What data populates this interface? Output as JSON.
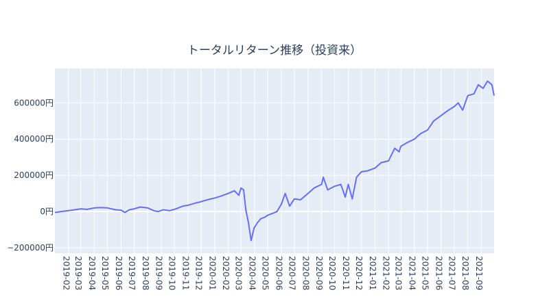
{
  "chart_data": {
    "type": "line",
    "title": "トータルリターン推移（投資来）",
    "xlabel": "",
    "ylabel": "",
    "x_ticks": [
      "2019-02",
      "2019-03",
      "2019-04",
      "2019-05",
      "2019-06",
      "2019-07",
      "2019-08",
      "2019-09",
      "2019-10",
      "2019-11",
      "2019-12",
      "2020-01",
      "2020-02",
      "2020-03",
      "2020-04",
      "2020-05",
      "2020-06",
      "2020-07",
      "2020-08",
      "2020-09",
      "2020-10",
      "2020-11",
      "2020-12",
      "2021-01",
      "2021-02",
      "2021-03",
      "2021-04",
      "2021-05",
      "2021-06",
      "2021-07",
      "2021-08",
      "2021-09"
    ],
    "y_ticks": [
      {
        "value": -200000,
        "label": "−200000円"
      },
      {
        "value": 0,
        "label": "0円"
      },
      {
        "value": 200000,
        "label": "200000円"
      },
      {
        "value": 400000,
        "label": "400000円"
      },
      {
        "value": 600000,
        "label": "600000円"
      }
    ],
    "xlim": [
      "2019-01-01",
      "2021-09-30"
    ],
    "ylim": [
      -230000,
      790000
    ],
    "grid": true,
    "colors": {
      "line": "#636efa",
      "plot_bg": "#e5ecf6",
      "grid": "#ffffff",
      "text": "#2a3f5f"
    },
    "series": [
      {
        "x": [
          "2019-01-01",
          "2019-01-15",
          "2019-02-01",
          "2019-02-15",
          "2019-03-01",
          "2019-03-15",
          "2019-04-01",
          "2019-04-15",
          "2019-05-01",
          "2019-05-20",
          "2019-06-01",
          "2019-06-10",
          "2019-06-20",
          "2019-07-01",
          "2019-07-15",
          "2019-08-01",
          "2019-08-15",
          "2019-08-25",
          "2019-09-05",
          "2019-09-20",
          "2019-10-05",
          "2019-10-20",
          "2019-11-01",
          "2019-11-15",
          "2019-12-01",
          "2019-12-15",
          "2020-01-01",
          "2020-01-15",
          "2020-02-01",
          "2020-02-15",
          "2020-02-25",
          "2020-03-01",
          "2020-03-07",
          "2020-03-12",
          "2020-03-18",
          "2020-03-24",
          "2020-03-31",
          "2020-04-08",
          "2020-04-15",
          "2020-04-25",
          "2020-05-01",
          "2020-05-12",
          "2020-05-22",
          "2020-06-01",
          "2020-06-10",
          "2020-06-20",
          "2020-07-01",
          "2020-07-15",
          "2020-08-01",
          "2020-08-15",
          "2020-09-01",
          "2020-09-05",
          "2020-09-15",
          "2020-10-01",
          "2020-10-15",
          "2020-10-25",
          "2020-11-01",
          "2020-11-10",
          "2020-11-20",
          "2020-12-01",
          "2020-12-15",
          "2021-01-01",
          "2021-01-15",
          "2021-02-01",
          "2021-02-15",
          "2021-02-25",
          "2021-03-01",
          "2021-03-15",
          "2021-04-01",
          "2021-04-15",
          "2021-05-01",
          "2021-05-15",
          "2021-06-01",
          "2021-06-15",
          "2021-07-01",
          "2021-07-10",
          "2021-07-20",
          "2021-08-01",
          "2021-08-15",
          "2021-08-25",
          "2021-09-05",
          "2021-09-15",
          "2021-09-25",
          "2021-09-30"
        ],
        "y": [
          -5000,
          0,
          5000,
          10000,
          15000,
          12000,
          20000,
          22000,
          20000,
          10000,
          8000,
          -5000,
          10000,
          15000,
          25000,
          20000,
          5000,
          0,
          10000,
          5000,
          15000,
          30000,
          35000,
          45000,
          55000,
          65000,
          75000,
          85000,
          100000,
          115000,
          90000,
          130000,
          120000,
          10000,
          -60000,
          -160000,
          -90000,
          -60000,
          -40000,
          -30000,
          -20000,
          -10000,
          0,
          40000,
          100000,
          30000,
          70000,
          65000,
          100000,
          130000,
          150000,
          190000,
          120000,
          140000,
          150000,
          80000,
          150000,
          70000,
          190000,
          220000,
          225000,
          240000,
          270000,
          280000,
          350000,
          330000,
          360000,
          380000,
          400000,
          430000,
          450000,
          500000,
          530000,
          555000,
          580000,
          600000,
          560000,
          640000,
          650000,
          700000,
          680000,
          720000,
          700000,
          640000
        ]
      }
    ]
  }
}
